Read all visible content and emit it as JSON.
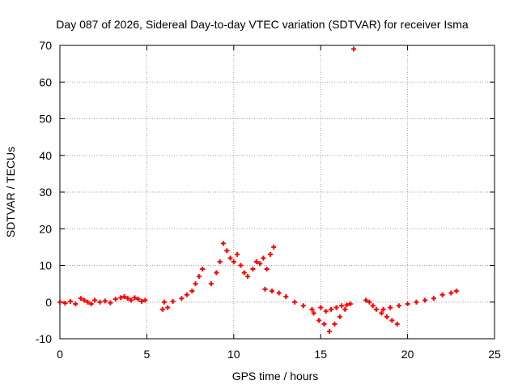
{
  "chart_data": {
    "type": "scatter",
    "title": "Day 087 of 2026, Sidereal Day-to-day VTEC variation (SDTVAR) for receiver Isma",
    "xlabel": "GPS time / hours",
    "ylabel": "SDTVAR / TECUs",
    "xlim": [
      0,
      25
    ],
    "ylim": [
      -10,
      70
    ],
    "xticks": [
      0,
      5,
      10,
      15,
      20,
      25
    ],
    "yticks": [
      -10,
      0,
      10,
      20,
      30,
      40,
      50,
      60,
      70
    ],
    "grid": true,
    "marker": "+",
    "series": [
      {
        "name": "SDTVAR",
        "color": "#ff0000",
        "x": [
          0.0,
          0.3,
          0.6,
          0.9,
          1.2,
          1.4,
          1.6,
          1.8,
          2.0,
          2.3,
          2.6,
          2.9,
          3.2,
          3.5,
          3.7,
          3.9,
          4.1,
          4.3,
          4.5,
          4.7,
          4.9,
          5.9,
          6.0,
          6.2,
          6.5,
          7.0,
          7.3,
          7.6,
          7.8,
          8.0,
          8.2,
          8.7,
          9.0,
          9.2,
          9.4,
          9.6,
          9.8,
          10.0,
          10.2,
          10.4,
          10.6,
          10.8,
          11.1,
          11.3,
          11.5,
          11.7,
          11.9,
          12.1,
          12.3,
          11.8,
          12.2,
          12.6,
          13.0,
          13.5,
          14.0,
          14.5,
          15.0,
          15.3,
          15.6,
          15.9,
          16.2,
          16.5,
          14.6,
          14.9,
          15.2,
          15.5,
          15.8,
          16.1,
          16.4,
          16.7,
          17.6,
          17.8,
          18.0,
          18.2,
          18.5,
          18.8,
          19.1,
          19.4,
          18.6,
          19.0,
          19.5,
          20.0,
          20.5,
          21.0,
          21.5,
          22.0,
          22.5,
          22.8,
          16.9
        ],
        "y": [
          0.0,
          -0.3,
          0.2,
          -0.5,
          1.0,
          0.5,
          0.0,
          -0.5,
          0.5,
          0.0,
          0.3,
          -0.2,
          0.8,
          1.2,
          1.5,
          1.0,
          0.5,
          1.2,
          0.8,
          0.2,
          0.5,
          -2.0,
          0.0,
          -1.5,
          0.2,
          1.0,
          2.0,
          3.0,
          5.0,
          7.0,
          9.0,
          5.0,
          8.0,
          11.0,
          16.0,
          14.0,
          12.0,
          11.0,
          13.0,
          10.0,
          8.0,
          7.0,
          9.0,
          11.0,
          10.5,
          12.0,
          9.0,
          13.0,
          15.0,
          3.5,
          3.0,
          2.5,
          1.5,
          0.0,
          -1.0,
          -2.0,
          -1.5,
          -2.5,
          -2.0,
          -1.5,
          -1.0,
          -0.8,
          -3.0,
          -5.0,
          -6.0,
          -8.0,
          -6.0,
          -4.0,
          -2.0,
          -0.5,
          0.5,
          0.0,
          -1.0,
          -2.0,
          -3.0,
          -4.0,
          -5.0,
          -6.0,
          -2.0,
          -1.5,
          -1.0,
          -0.5,
          0.0,
          0.5,
          1.0,
          2.0,
          2.5,
          3.0,
          69.0
        ]
      }
    ]
  }
}
